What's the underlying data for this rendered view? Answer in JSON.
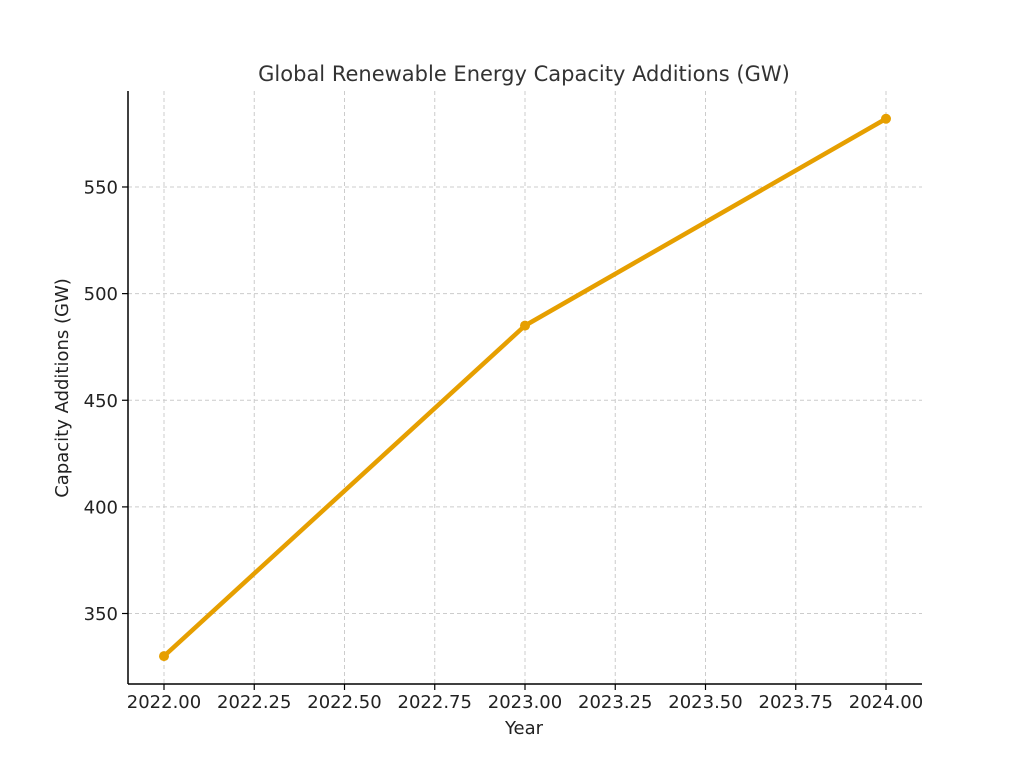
{
  "chart_data": {
    "type": "line",
    "title": "Global Renewable Energy Capacity Additions (GW)",
    "xlabel": "Year",
    "ylabel": "Capacity Additions (GW)",
    "xlim": [
      1921.9,
      2024.1
    ],
    "ylim": [
      320,
      592
    ],
    "x_ticks": [
      2022.0,
      2022.25,
      2022.5,
      2022.75,
      2023.0,
      2023.25,
      2023.5,
      2023.75,
      2024.0
    ],
    "x_tick_labels": [
      "2022.00",
      "2022.25",
      "2022.50",
      "2022.75",
      "2023.00",
      "2023.25",
      "2023.50",
      "2023.75",
      "2024.00"
    ],
    "y_ticks": [
      350,
      400,
      450,
      500,
      550
    ],
    "y_tick_labels": [
      "350",
      "400",
      "450",
      "500",
      "550"
    ],
    "grid": true,
    "series": [
      {
        "x": [
          2022,
          2023,
          2024
        ],
        "y": [
          330,
          485,
          582
        ],
        "color": "#E69F00"
      }
    ]
  }
}
